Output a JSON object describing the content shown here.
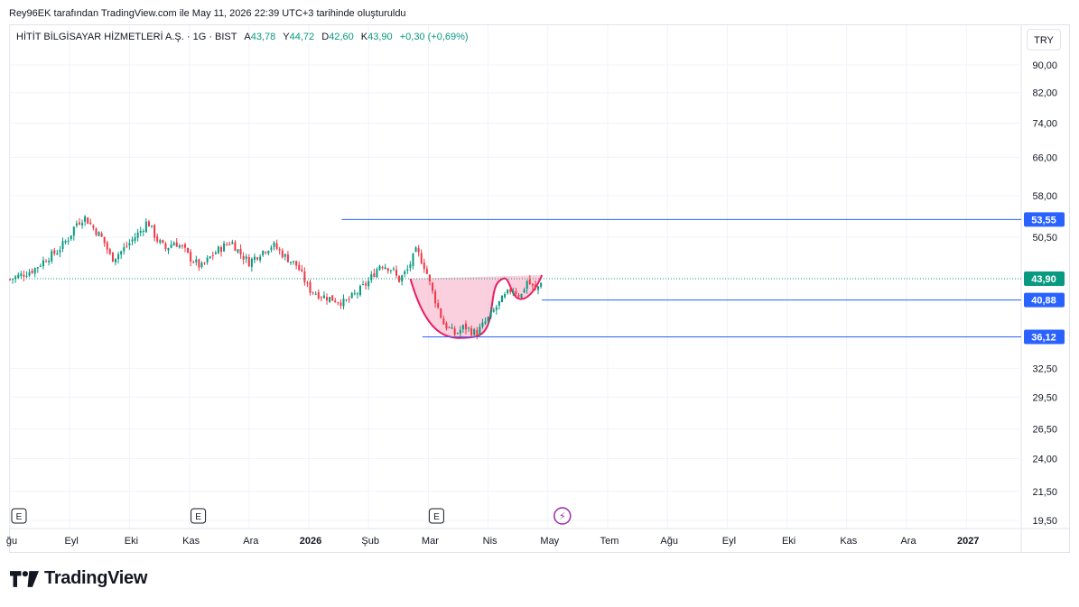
{
  "caption": "Rey96EK tarafından TradingView.com ile May 11, 2026 22:39 UTC+3 tarihinde oluşturuldu",
  "symbol": {
    "name": "HİTİT BİLGİSAYAR HİZMETLERİ A.Ş. · 1G · BIST",
    "open_label": "A",
    "open": "43,78",
    "high_label": "Y",
    "high": "44,72",
    "low_label": "D",
    "low": "42,60",
    "close_label": "K",
    "close": "43,90",
    "change": "+0,30 (+0,69%)"
  },
  "currency": "TRY",
  "brand": "TradingView",
  "colors": {
    "up": "#089981",
    "down": "#f23645",
    "line": "#2962ff",
    "arc": "#e91e63",
    "fill": "#f8bbd0",
    "text": "#131722"
  },
  "chart_data": {
    "type": "candlestick",
    "y_scale": "log",
    "ylim": [
      19.0,
      96.0
    ],
    "price_ticks": [
      "90,00",
      "82,00",
      "74,00",
      "66,00",
      "58,00",
      "50,50",
      "32,50",
      "29,50",
      "26,50",
      "24,00",
      "21,50",
      "19,50"
    ],
    "price_tick_values": [
      90,
      82,
      74,
      66,
      58,
      50.5,
      32.5,
      29.5,
      26.5,
      24,
      21.5,
      19.5
    ],
    "time_ticks": [
      "ğu",
      "Eyl",
      "Eki",
      "Kas",
      "Ara",
      "2026",
      "Şub",
      "Mar",
      "Nis",
      "May",
      "Tem",
      "Ağu",
      "Eyl",
      "Eki",
      "Kas",
      "Ara",
      "2027"
    ],
    "time_tick_bold": [
      false,
      false,
      false,
      false,
      false,
      true,
      false,
      false,
      false,
      false,
      false,
      false,
      false,
      false,
      false,
      false,
      true
    ],
    "events": [
      {
        "label": "E",
        "date_index": 0
      },
      {
        "label": "E",
        "date_index": 3
      },
      {
        "label": "E",
        "date_index": 7
      },
      {
        "label": "⚡",
        "date_index": 9
      }
    ],
    "last_price": {
      "value": 43.9,
      "label": "43,90"
    },
    "horizontal_lines": [
      {
        "value": 53.55,
        "label": "53,55",
        "from_month": 5.55
      },
      {
        "value": 40.88,
        "label": "40,88",
        "from_month": 8.9
      },
      {
        "value": 36.12,
        "label": "36,12",
        "from_month": 6.9
      }
    ],
    "cup_pattern": {
      "start_month": 6.7,
      "bottom_month": 7.75,
      "bottom_value": 36.1,
      "end_month": 8.9,
      "rim_value": 43.9
    },
    "series_close": [
      [
        0.0,
        43.8
      ],
      [
        0.2,
        44.5
      ],
      [
        0.4,
        45.3
      ],
      [
        0.6,
        46.9
      ],
      [
        0.8,
        48.2
      ],
      [
        1.0,
        50.6
      ],
      [
        1.1,
        52.8
      ],
      [
        1.25,
        54.0
      ],
      [
        1.4,
        52.0
      ],
      [
        1.55,
        50.2
      ],
      [
        1.7,
        46.9
      ],
      [
        1.85,
        48.0
      ],
      [
        2.0,
        49.5
      ],
      [
        2.2,
        51.7
      ],
      [
        2.3,
        53.3
      ],
      [
        2.45,
        50.2
      ],
      [
        2.6,
        48.5
      ],
      [
        2.75,
        49.7
      ],
      [
        2.9,
        48.6
      ],
      [
        3.0,
        47.2
      ],
      [
        3.2,
        45.6
      ],
      [
        3.4,
        47.7
      ],
      [
        3.55,
        48.8
      ],
      [
        3.7,
        49.8
      ],
      [
        3.85,
        47.8
      ],
      [
        4.0,
        46.4
      ],
      [
        4.2,
        48.0
      ],
      [
        4.4,
        49.2
      ],
      [
        4.6,
        47.3
      ],
      [
        4.8,
        45.9
      ],
      [
        5.0,
        42.4
      ],
      [
        5.2,
        41.5
      ],
      [
        5.4,
        41.0
      ],
      [
        5.6,
        40.5
      ],
      [
        5.8,
        41.8
      ],
      [
        6.0,
        43.5
      ],
      [
        6.2,
        46.2
      ],
      [
        6.4,
        45.3
      ],
      [
        6.5,
        43.6
      ],
      [
        6.65,
        45.2
      ],
      [
        6.8,
        48.3
      ],
      [
        6.95,
        45.5
      ],
      [
        7.05,
        42.4
      ],
      [
        7.25,
        37.8
      ],
      [
        7.45,
        36.4
      ],
      [
        7.6,
        37.4
      ],
      [
        7.8,
        36.5
      ],
      [
        8.0,
        38.4
      ],
      [
        8.2,
        40.6
      ],
      [
        8.4,
        42.5
      ],
      [
        8.55,
        41.4
      ],
      [
        8.65,
        43.6
      ],
      [
        8.8,
        42.1
      ],
      [
        8.9,
        43.9
      ]
    ]
  }
}
